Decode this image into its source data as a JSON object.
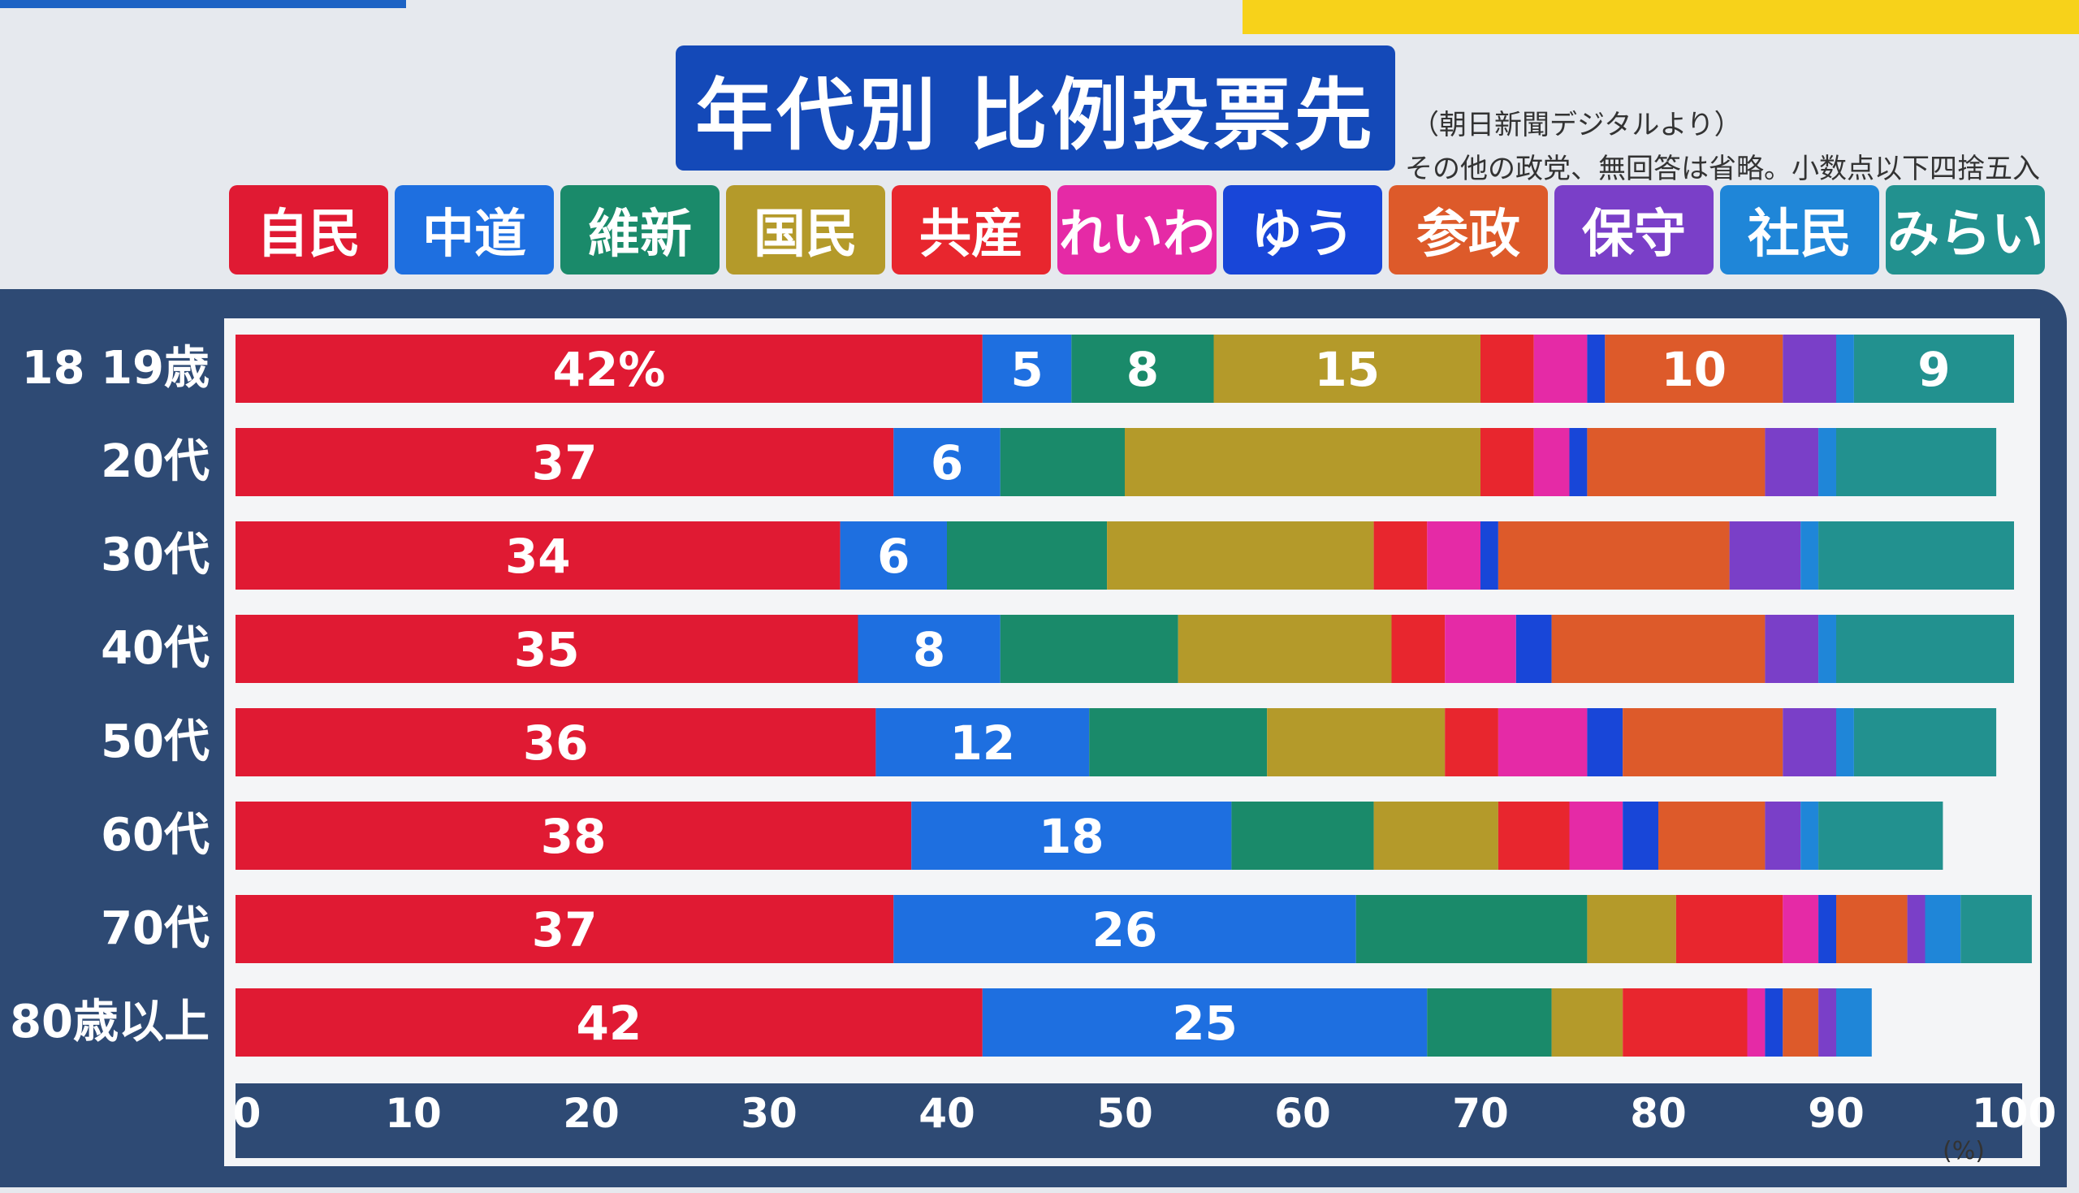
{
  "title": "年代別 比例投票先",
  "source": "（朝日新聞デジタルより）",
  "note": "その他の政党、無回答は省略。小数点以下四捨五入",
  "legend": [
    {
      "name": "自民",
      "color": "#e01a33"
    },
    {
      "name": "中道",
      "color": "#1e6fe0"
    },
    {
      "name": "維新",
      "color": "#1a8a6a"
    },
    {
      "name": "国民",
      "color": "#b49a2a"
    },
    {
      "name": "共産",
      "color": "#e8262e"
    },
    {
      "name": "れいわ",
      "color": "#e52aa6"
    },
    {
      "name": "ゆう",
      "color": "#1846d8"
    },
    {
      "name": "参政",
      "color": "#dd5a2a"
    },
    {
      "name": "保守",
      "color": "#7a3fc8"
    },
    {
      "name": "社民",
      "color": "#1f86d8"
    },
    {
      "name": "みらい",
      "color": "#22918f"
    }
  ],
  "chart_data": {
    "type": "bar",
    "orientation": "horizontal",
    "stacked": true,
    "title": "年代別 比例投票先",
    "xlim": [
      0,
      100
    ],
    "x_ticks": [
      "0",
      "10",
      "20",
      "30",
      "40",
      "50",
      "60",
      "70",
      "80",
      "90",
      "100"
    ],
    "x_unit": "(%)",
    "categories": [
      "18 19歳",
      "20代",
      "30代",
      "40代",
      "50代",
      "60代",
      "70代",
      "80歳以上"
    ],
    "series": [
      {
        "name": "自民",
        "values": [
          42,
          37,
          34,
          35,
          36,
          38,
          37,
          42
        ]
      },
      {
        "name": "中道",
        "values": [
          5,
          6,
          6,
          8,
          12,
          18,
          26,
          25
        ]
      },
      {
        "name": "維新",
        "values": [
          8,
          7,
          9,
          10,
          10,
          8,
          13,
          7
        ]
      },
      {
        "name": "国民",
        "values": [
          15,
          20,
          15,
          12,
          10,
          7,
          5,
          4
        ]
      },
      {
        "name": "共産",
        "values": [
          3,
          3,
          3,
          3,
          3,
          4,
          6,
          7
        ]
      },
      {
        "name": "れいわ",
        "values": [
          3,
          2,
          3,
          4,
          5,
          3,
          2,
          1
        ]
      },
      {
        "name": "ゆう",
        "values": [
          1,
          1,
          1,
          2,
          2,
          2,
          1,
          1
        ]
      },
      {
        "name": "参政",
        "values": [
          10,
          10,
          13,
          12,
          9,
          6,
          4,
          2
        ]
      },
      {
        "name": "保守",
        "values": [
          3,
          3,
          4,
          3,
          3,
          2,
          1,
          1
        ]
      },
      {
        "name": "社民",
        "values": [
          1,
          1,
          1,
          1,
          1,
          1,
          2,
          2
        ]
      },
      {
        "name": "みらい",
        "values": [
          9,
          9,
          11,
          10,
          8,
          7,
          4,
          0
        ]
      }
    ],
    "data_labels": [
      [
        "42%",
        "5",
        "8",
        "15",
        "",
        "",
        "",
        "10",
        "",
        "",
        "9"
      ],
      [
        "37",
        "6",
        "",
        "",
        "",
        "",
        "",
        "",
        "",
        "",
        ""
      ],
      [
        "34",
        "6",
        "",
        "",
        "",
        "",
        "",
        "",
        "",
        "",
        ""
      ],
      [
        "35",
        "8",
        "",
        "",
        "",
        "",
        "",
        "",
        "",
        "",
        ""
      ],
      [
        "36",
        "12",
        "",
        "",
        "",
        "",
        "",
        "",
        "",
        "",
        ""
      ],
      [
        "38",
        "18",
        "",
        "",
        "",
        "",
        "",
        "",
        "",
        "",
        ""
      ],
      [
        "37",
        "26",
        "",
        "",
        "",
        "",
        "",
        "",
        "",
        "",
        ""
      ],
      [
        "42",
        "25",
        "",
        "",
        "",
        "",
        "",
        "",
        "",
        "",
        ""
      ]
    ]
  }
}
